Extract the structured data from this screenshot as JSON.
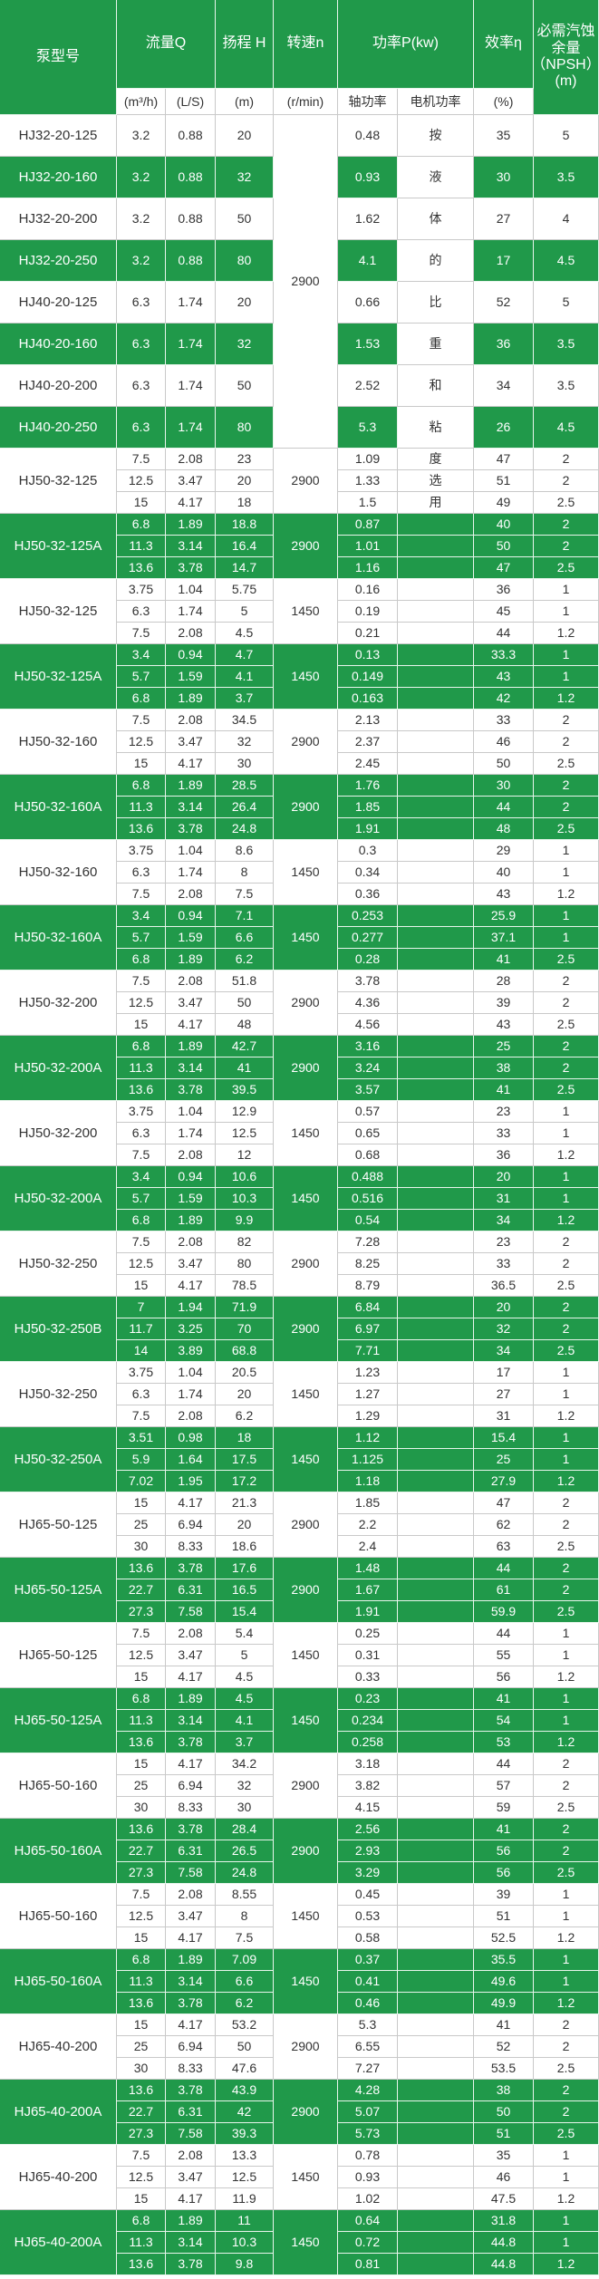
{
  "header": {
    "model": "泵型号",
    "flow": "流量Q",
    "flow_m3h": "(m³/h)",
    "flow_ls": "(L/S)",
    "head": "扬程 H",
    "head_unit": "(m)",
    "speed": "转速n",
    "speed_unit": "(r/min)",
    "power": "功率P(kw)",
    "shaft_power": "轴功率",
    "motor_power": "电机功率",
    "efficiency": "效率η",
    "efficiency_unit": "(%)",
    "npsh": "必需汽蚀余量（NPSH）(m)"
  },
  "top_speed": "2900",
  "top_rows": [
    [
      "HJ32-20-125",
      "3.2",
      "0.88",
      "20",
      "0.48",
      "按",
      "35",
      "5"
    ],
    [
      "HJ32-20-160",
      "3.2",
      "0.88",
      "32",
      "0.93",
      "液",
      "30",
      "3.5"
    ],
    [
      "HJ32-20-200",
      "3.2",
      "0.88",
      "50",
      "1.62",
      "体",
      "27",
      "4"
    ],
    [
      "HJ32-20-250",
      "3.2",
      "0.88",
      "80",
      "4.1",
      "的",
      "17",
      "4.5"
    ],
    [
      "HJ40-20-125",
      "6.3",
      "1.74",
      "20",
      "0.66",
      "比",
      "52",
      "5"
    ],
    [
      "HJ40-20-160",
      "6.3",
      "1.74",
      "32",
      "1.53",
      "重",
      "36",
      "3.5"
    ],
    [
      "HJ40-20-200",
      "6.3",
      "1.74",
      "50",
      "2.52",
      "和",
      "34",
      "3.5"
    ],
    [
      "HJ40-20-250",
      "6.3",
      "1.74",
      "80",
      "5.3",
      "粘",
      "26",
      "4.5"
    ]
  ],
  "groups": [
    {
      "model": "HJ50-32-125",
      "speed": "2900",
      "motor": [
        "度",
        "选",
        "用"
      ],
      "rows": [
        [
          "7.5",
          "2.08",
          "23",
          "1.09",
          "47",
          "2"
        ],
        [
          "12.5",
          "3.47",
          "20",
          "1.33",
          "51",
          "2"
        ],
        [
          "15",
          "4.17",
          "18",
          "1.5",
          "49",
          "2.5"
        ]
      ]
    },
    {
      "model": "HJ50-32-125A",
      "speed": "2900",
      "rows": [
        [
          "6.8",
          "1.89",
          "18.8",
          "0.87",
          "40",
          "2"
        ],
        [
          "11.3",
          "3.14",
          "16.4",
          "1.01",
          "50",
          "2"
        ],
        [
          "13.6",
          "3.78",
          "14.7",
          "1.16",
          "47",
          "2.5"
        ]
      ]
    },
    {
      "model": "HJ50-32-125",
      "speed": "1450",
      "rows": [
        [
          "3.75",
          "1.04",
          "5.75",
          "0.16",
          "36",
          "1"
        ],
        [
          "6.3",
          "1.74",
          "5",
          "0.19",
          "45",
          "1"
        ],
        [
          "7.5",
          "2.08",
          "4.5",
          "0.21",
          "44",
          "1.2"
        ]
      ]
    },
    {
      "model": "HJ50-32-125A",
      "speed": "1450",
      "rows": [
        [
          "3.4",
          "0.94",
          "4.7",
          "0.13",
          "33.3",
          "1"
        ],
        [
          "5.7",
          "1.59",
          "4.1",
          "0.149",
          "43",
          "1"
        ],
        [
          "6.8",
          "1.89",
          "3.7",
          "0.163",
          "42",
          "1.2"
        ]
      ]
    },
    {
      "model": "HJ50-32-160",
      "speed": "2900",
      "rows": [
        [
          "7.5",
          "2.08",
          "34.5",
          "2.13",
          "33",
          "2"
        ],
        [
          "12.5",
          "3.47",
          "32",
          "2.37",
          "46",
          "2"
        ],
        [
          "15",
          "4.17",
          "30",
          "2.45",
          "50",
          "2.5"
        ]
      ]
    },
    {
      "model": "HJ50-32-160A",
      "speed": "2900",
      "rows": [
        [
          "6.8",
          "1.89",
          "28.5",
          "1.76",
          "30",
          "2"
        ],
        [
          "11.3",
          "3.14",
          "26.4",
          "1.85",
          "44",
          "2"
        ],
        [
          "13.6",
          "3.78",
          "24.8",
          "1.91",
          "48",
          "2.5"
        ]
      ]
    },
    {
      "model": "HJ50-32-160",
      "speed": "1450",
      "rows": [
        [
          "3.75",
          "1.04",
          "8.6",
          "0.3",
          "29",
          "1"
        ],
        [
          "6.3",
          "1.74",
          "8",
          "0.34",
          "40",
          "1"
        ],
        [
          "7.5",
          "2.08",
          "7.5",
          "0.36",
          "43",
          "1.2"
        ]
      ]
    },
    {
      "model": "HJ50-32-160A",
      "speed": "1450",
      "rows": [
        [
          "3.4",
          "0.94",
          "7.1",
          "0.253",
          "25.9",
          "1"
        ],
        [
          "5.7",
          "1.59",
          "6.6",
          "0.277",
          "37.1",
          "1"
        ],
        [
          "6.8",
          "1.89",
          "6.2",
          "0.28",
          "41",
          "2.5"
        ]
      ]
    },
    {
      "model": "HJ50-32-200",
      "speed": "2900",
      "rows": [
        [
          "7.5",
          "2.08",
          "51.8",
          "3.78",
          "28",
          "2"
        ],
        [
          "12.5",
          "3.47",
          "50",
          "4.36",
          "39",
          "2"
        ],
        [
          "15",
          "4.17",
          "48",
          "4.56",
          "43",
          "2.5"
        ]
      ]
    },
    {
      "model": "HJ50-32-200A",
      "speed": "2900",
      "rows": [
        [
          "6.8",
          "1.89",
          "42.7",
          "3.16",
          "25",
          "2"
        ],
        [
          "11.3",
          "3.14",
          "41",
          "3.24",
          "38",
          "2"
        ],
        [
          "13.6",
          "3.78",
          "39.5",
          "3.57",
          "41",
          "2.5"
        ]
      ]
    },
    {
      "model": "HJ50-32-200",
      "speed": "1450",
      "rows": [
        [
          "3.75",
          "1.04",
          "12.9",
          "0.57",
          "23",
          "1"
        ],
        [
          "6.3",
          "1.74",
          "12.5",
          "0.65",
          "33",
          "1"
        ],
        [
          "7.5",
          "2.08",
          "12",
          "0.68",
          "36",
          "1.2"
        ]
      ]
    },
    {
      "model": "HJ50-32-200A",
      "speed": "1450",
      "rows": [
        [
          "3.4",
          "0.94",
          "10.6",
          "0.488",
          "20",
          "1"
        ],
        [
          "5.7",
          "1.59",
          "10.3",
          "0.516",
          "31",
          "1"
        ],
        [
          "6.8",
          "1.89",
          "9.9",
          "0.54",
          "34",
          "1.2"
        ]
      ]
    },
    {
      "model": "HJ50-32-250",
      "speed": "2900",
      "rows": [
        [
          "7.5",
          "2.08",
          "82",
          "7.28",
          "23",
          "2"
        ],
        [
          "12.5",
          "3.47",
          "80",
          "8.25",
          "33",
          "2"
        ],
        [
          "15",
          "4.17",
          "78.5",
          "8.79",
          "36.5",
          "2.5"
        ]
      ]
    },
    {
      "model": "HJ50-32-250B",
      "speed": "2900",
      "rows": [
        [
          "7",
          "1.94",
          "71.9",
          "6.84",
          "20",
          "2"
        ],
        [
          "11.7",
          "3.25",
          "70",
          "6.97",
          "32",
          "2"
        ],
        [
          "14",
          "3.89",
          "68.8",
          "7.71",
          "34",
          "2.5"
        ]
      ]
    },
    {
      "model": "HJ50-32-250",
      "speed": "1450",
      "rows": [
        [
          "3.75",
          "1.04",
          "20.5",
          "1.23",
          "17",
          "1"
        ],
        [
          "6.3",
          "1.74",
          "20",
          "1.27",
          "27",
          "1"
        ],
        [
          "7.5",
          "2.08",
          "6.2",
          "1.29",
          "31",
          "1.2"
        ]
      ]
    },
    {
      "model": "HJ50-32-250A",
      "speed": "1450",
      "rows": [
        [
          "3.51",
          "0.98",
          "18",
          "1.12",
          "15.4",
          "1"
        ],
        [
          "5.9",
          "1.64",
          "17.5",
          "1.125",
          "25",
          "1"
        ],
        [
          "7.02",
          "1.95",
          "17.2",
          "1.18",
          "27.9",
          "1.2"
        ]
      ]
    },
    {
      "model": "HJ65-50-125",
      "speed": "2900",
      "rows": [
        [
          "15",
          "4.17",
          "21.3",
          "1.85",
          "47",
          "2"
        ],
        [
          "25",
          "6.94",
          "20",
          "2.2",
          "62",
          "2"
        ],
        [
          "30",
          "8.33",
          "18.6",
          "2.4",
          "63",
          "2.5"
        ]
      ]
    },
    {
      "model": "HJ65-50-125A",
      "speed": "2900",
      "rows": [
        [
          "13.6",
          "3.78",
          "17.6",
          "1.48",
          "44",
          "2"
        ],
        [
          "22.7",
          "6.31",
          "16.5",
          "1.67",
          "61",
          "2"
        ],
        [
          "27.3",
          "7.58",
          "15.4",
          "1.91",
          "59.9",
          "2.5"
        ]
      ]
    },
    {
      "model": "HJ65-50-125",
      "speed": "1450",
      "rows": [
        [
          "7.5",
          "2.08",
          "5.4",
          "0.25",
          "44",
          "1"
        ],
        [
          "12.5",
          "3.47",
          "5",
          "0.31",
          "55",
          "1"
        ],
        [
          "15",
          "4.17",
          "4.5",
          "0.33",
          "56",
          "1.2"
        ]
      ]
    },
    {
      "model": "HJ65-50-125A",
      "speed": "1450",
      "rows": [
        [
          "6.8",
          "1.89",
          "4.5",
          "0.23",
          "41",
          "1"
        ],
        [
          "11.3",
          "3.14",
          "4.1",
          "0.234",
          "54",
          "1"
        ],
        [
          "13.6",
          "3.78",
          "3.7",
          "0.258",
          "53",
          "1.2"
        ]
      ]
    },
    {
      "model": "HJ65-50-160",
      "speed": "2900",
      "rows": [
        [
          "15",
          "4.17",
          "34.2",
          "3.18",
          "44",
          "2"
        ],
        [
          "25",
          "6.94",
          "32",
          "3.82",
          "57",
          "2"
        ],
        [
          "30",
          "8.33",
          "30",
          "4.15",
          "59",
          "2.5"
        ]
      ]
    },
    {
      "model": "HJ65-50-160A",
      "speed": "2900",
      "rows": [
        [
          "13.6",
          "3.78",
          "28.4",
          "2.56",
          "41",
          "2"
        ],
        [
          "22.7",
          "6.31",
          "26.5",
          "2.93",
          "56",
          "2"
        ],
        [
          "27.3",
          "7.58",
          "24.8",
          "3.29",
          "56",
          "2.5"
        ]
      ]
    },
    {
      "model": "HJ65-50-160",
      "speed": "1450",
      "rows": [
        [
          "7.5",
          "2.08",
          "8.55",
          "0.45",
          "39",
          "1"
        ],
        [
          "12.5",
          "3.47",
          "8",
          "0.53",
          "51",
          "1"
        ],
        [
          "15",
          "4.17",
          "7.5",
          "0.58",
          "52.5",
          "1.2"
        ]
      ]
    },
    {
      "model": "HJ65-50-160A",
      "speed": "1450",
      "rows": [
        [
          "6.8",
          "1.89",
          "7.09",
          "0.37",
          "35.5",
          "1"
        ],
        [
          "11.3",
          "3.14",
          "6.6",
          "0.41",
          "49.6",
          "1"
        ],
        [
          "13.6",
          "3.78",
          "6.2",
          "0.46",
          "49.9",
          "1.2"
        ]
      ]
    },
    {
      "model": "HJ65-40-200",
      "speed": "2900",
      "rows": [
        [
          "15",
          "4.17",
          "53.2",
          "5.3",
          "41",
          "2"
        ],
        [
          "25",
          "6.94",
          "50",
          "6.55",
          "52",
          "2"
        ],
        [
          "30",
          "8.33",
          "47.6",
          "7.27",
          "53.5",
          "2.5"
        ]
      ]
    },
    {
      "model": "HJ65-40-200A",
      "speed": "2900",
      "rows": [
        [
          "13.6",
          "3.78",
          "43.9",
          "4.28",
          "38",
          "2"
        ],
        [
          "22.7",
          "6.31",
          "42",
          "5.07",
          "50",
          "2"
        ],
        [
          "27.3",
          "7.58",
          "39.3",
          "5.73",
          "51",
          "2.5"
        ]
      ]
    },
    {
      "model": "HJ65-40-200",
      "speed": "1450",
      "rows": [
        [
          "7.5",
          "2.08",
          "13.3",
          "0.78",
          "35",
          "1"
        ],
        [
          "12.5",
          "3.47",
          "12.5",
          "0.93",
          "46",
          "1"
        ],
        [
          "15",
          "4.17",
          "11.9",
          "1.02",
          "47.5",
          "1.2"
        ]
      ]
    },
    {
      "model": "HJ65-40-200A",
      "speed": "1450",
      "rows": [
        [
          "6.8",
          "1.89",
          "11",
          "0.64",
          "31.8",
          "1"
        ],
        [
          "11.3",
          "3.14",
          "10.3",
          "0.72",
          "44.8",
          "1"
        ],
        [
          "13.6",
          "3.78",
          "9.8",
          "0.81",
          "44.8",
          "1.2"
        ]
      ]
    }
  ]
}
